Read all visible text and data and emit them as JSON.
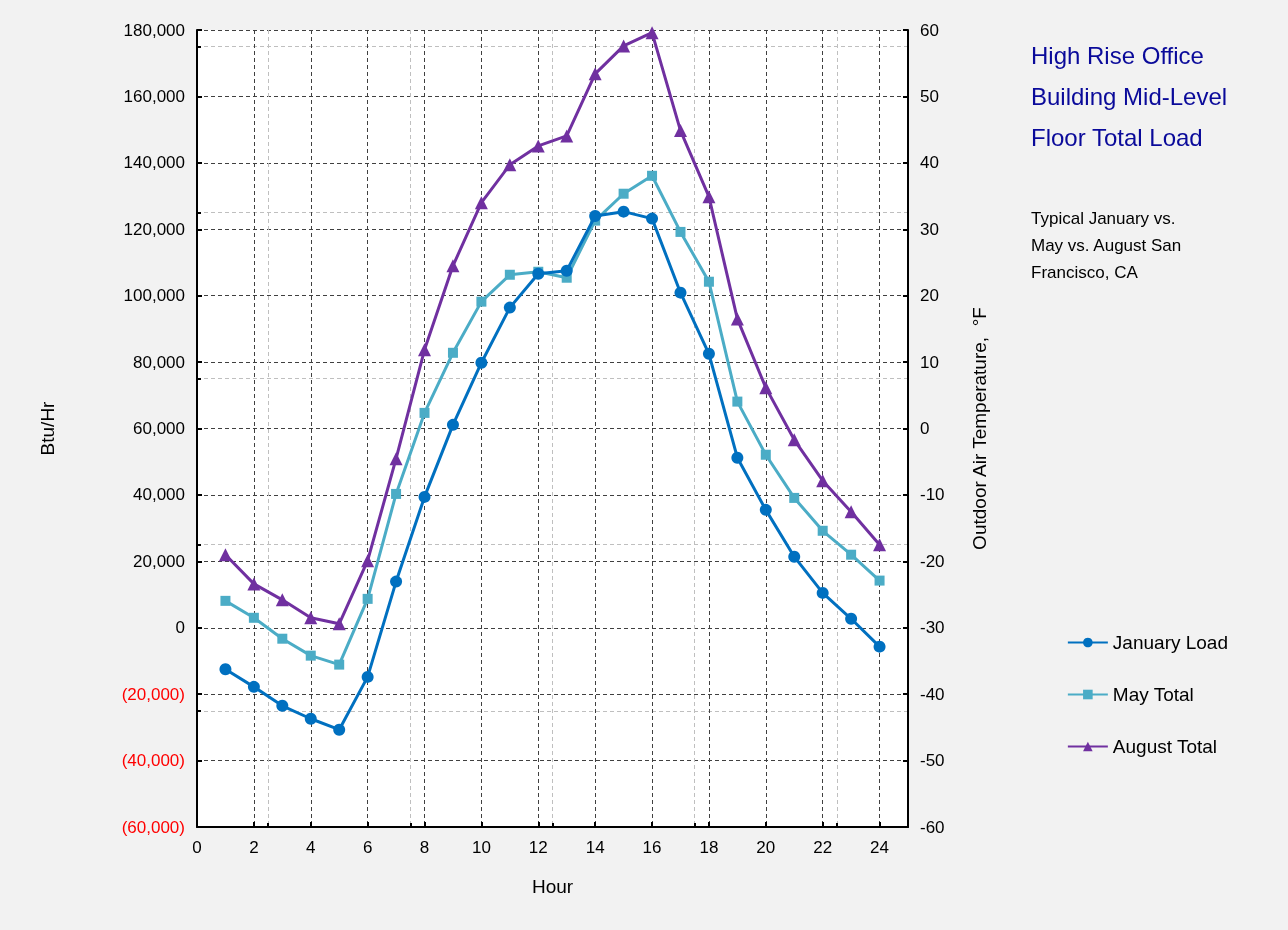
{
  "chart_data": {
    "type": "line",
    "title": "High Rise Office Building Mid-Level Floor Total Load",
    "subtitle": "Typical January vs. May vs. August San Francisco, CA",
    "xlabel": "Hour",
    "ylabel": "Btu/Hr",
    "y2label": "Outdoor Air Temperature,  °F",
    "x": [
      1,
      2,
      3,
      4,
      5,
      6,
      7,
      8,
      9,
      10,
      11,
      12,
      13,
      14,
      15,
      16,
      17,
      18,
      19,
      20,
      21,
      22,
      23,
      24
    ],
    "series": [
      {
        "name": "January Load",
        "color": "#0070c0",
        "marker": "circle",
        "values": [
          -12500,
          -17800,
          -23500,
          -27400,
          -30700,
          -14800,
          13900,
          39400,
          61100,
          79800,
          96400,
          106600,
          107500,
          124000,
          125300,
          123200,
          100900,
          82500,
          51200,
          35500,
          21400,
          10500,
          2700,
          -5700
        ]
      },
      {
        "name": "May Total",
        "color": "#4bacc6",
        "marker": "square",
        "values": [
          8100,
          3000,
          -3300,
          -8400,
          -11100,
          8700,
          40300,
          64700,
          82800,
          98200,
          106300,
          107200,
          105400,
          122600,
          130700,
          136100,
          119200,
          104200,
          68100,
          52100,
          39100,
          29200,
          22000,
          14200
        ]
      },
      {
        "name": "August Total",
        "color": "#7030a0",
        "marker": "triangle",
        "values": [
          22000,
          13200,
          8400,
          3000,
          1200,
          20200,
          50900,
          83700,
          109000,
          128000,
          139400,
          145100,
          148100,
          166800,
          175200,
          179200,
          149700,
          129800,
          93000,
          72300,
          56600,
          44300,
          34900,
          25000
        ]
      }
    ],
    "xlim": [
      0,
      25
    ],
    "xticks": [
      0,
      2,
      4,
      6,
      8,
      10,
      12,
      14,
      16,
      18,
      20,
      22,
      24
    ],
    "ylim": [
      -60000,
      180000
    ],
    "yticks": [
      {
        "value": -60000,
        "label": "(60,000)"
      },
      {
        "value": -40000,
        "label": "(40,000)"
      },
      {
        "value": -20000,
        "label": "(20,000)"
      },
      0,
      {
        "value": 20000,
        "label": "20,000"
      },
      {
        "value": 40000,
        "label": "40,000"
      },
      {
        "value": 60000,
        "label": "60,000"
      },
      {
        "value": 80000,
        "label": "80,000"
      },
      {
        "value": 100000,
        "label": "100,000"
      },
      {
        "value": 120000,
        "label": "120,000"
      },
      {
        "value": 140000,
        "label": "140,000"
      },
      {
        "value": 160000,
        "label": "160,000"
      },
      {
        "value": 180000,
        "label": "180,000"
      }
    ],
    "y2lim": [
      -60,
      60
    ],
    "y2ticks": [
      -60,
      -50,
      -40,
      -30,
      -20,
      -10,
      0,
      10,
      20,
      30,
      40,
      50,
      60
    ],
    "grid": true,
    "legend": "right",
    "line_style": "solid"
  }
}
